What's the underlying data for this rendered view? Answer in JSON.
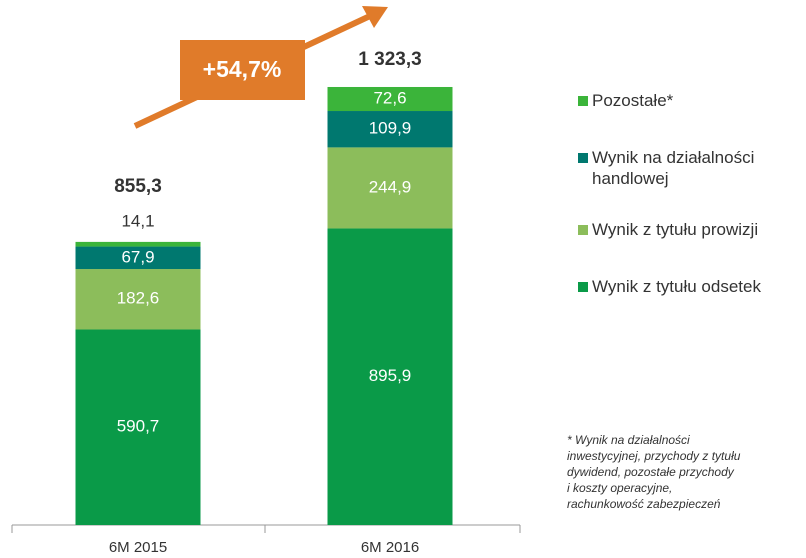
{
  "chart_data": {
    "type": "stacked-bar",
    "categories": [
      "6M 2015",
      "6M 2016"
    ],
    "series": [
      {
        "name": "Wynik z tytułu odsetek",
        "color": "#0a9a48",
        "values": [
          590.7,
          895.9
        ],
        "value_labels": [
          "590,7",
          "895,9"
        ]
      },
      {
        "name": "Wynik z tytułu prowizji",
        "color": "#8cbd5b",
        "values": [
          182.6,
          244.9
        ],
        "value_labels": [
          "182,6",
          "244,9"
        ]
      },
      {
        "name": "Wynik na działalności handlowej",
        "color": "#00786f",
        "values": [
          67.9,
          109.9
        ],
        "value_labels": [
          "67,9",
          "109,9"
        ]
      },
      {
        "name": "Pozostałe*",
        "color": "#3bb43a",
        "values": [
          14.1,
          72.6
        ],
        "value_labels": [
          "14,1",
          "72,6"
        ]
      }
    ],
    "totals": [
      855.3,
      1323.3
    ],
    "total_labels": [
      "855,3",
      "1 323,3"
    ],
    "annotation": "+54,7%",
    "footnote": [
      "* Wynik na działalności",
      "inwestycyjnej, przychody z tytułu",
      "dywidend, pozostałe przychody",
      "i koszty operacyjne,",
      "rachunkowość zabezpieczeń"
    ]
  }
}
